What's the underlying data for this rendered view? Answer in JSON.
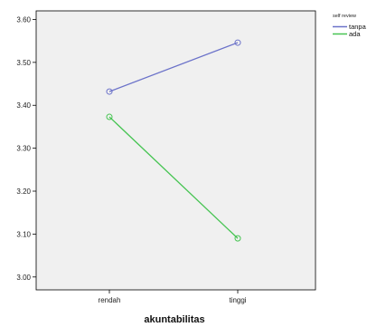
{
  "chart_data": {
    "type": "line",
    "categories": [
      "rendah",
      "tinggi"
    ],
    "xlabel": "akuntabilitas",
    "ylabel": "",
    "ylim": [
      2.97,
      3.62
    ],
    "yticks": [
      "3.00",
      "3.10",
      "3.20",
      "3.30",
      "3.40",
      "3.50",
      "3.60"
    ],
    "series": [
      {
        "name": "tanpa",
        "values": [
          3.432,
          3.546
        ],
        "color": "#6b72c9"
      },
      {
        "name": "ada",
        "values": [
          3.373,
          3.09
        ],
        "color": "#46c452"
      }
    ],
    "legend": {
      "title": "self review",
      "position": "top-right"
    },
    "plot_background": "#f0f0f0",
    "grid": false
  }
}
